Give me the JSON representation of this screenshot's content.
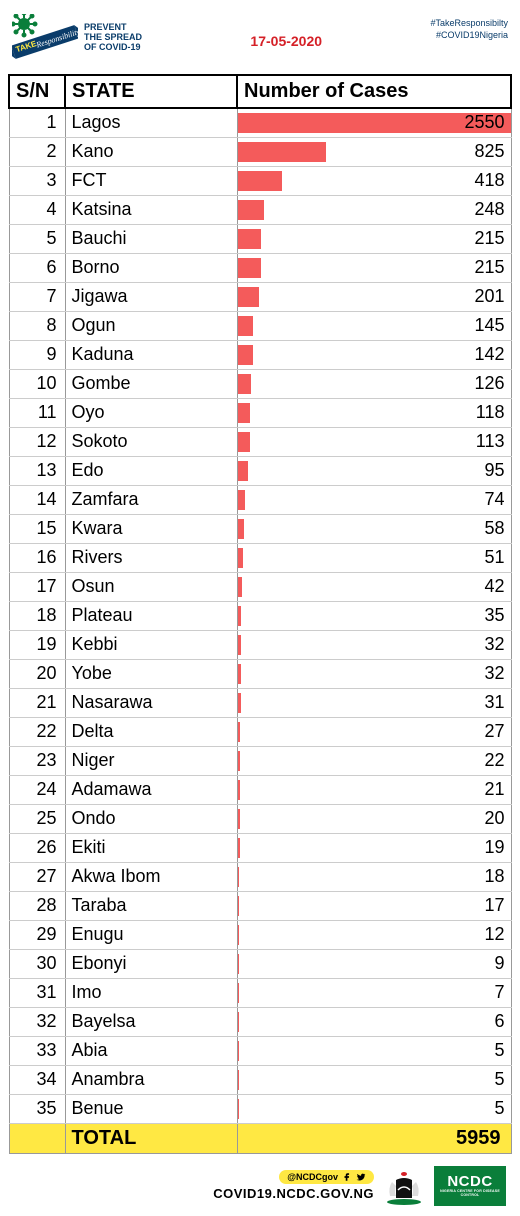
{
  "header": {
    "logo_top": "TAKE",
    "logo_word": "Responsibility",
    "prevent_line1": "PREVENT",
    "prevent_line2": "THE SPREAD",
    "prevent_line3": "OF COVID-19",
    "date": "17-05-2020",
    "hashtag1": "#TakeResponsibilty",
    "hashtag2": "#COVID19Nigeria"
  },
  "table": {
    "columns": {
      "sn": "S/N",
      "state": "STATE",
      "cases": "Number of Cases"
    },
    "bar_color": "#f45b5b",
    "bar_max": 2550,
    "total_label": "TOTAL",
    "total_value": 5959,
    "total_row_bg": "#ffe843",
    "rows": [
      {
        "sn": 1,
        "state": "Lagos",
        "cases": 2550
      },
      {
        "sn": 2,
        "state": "Kano",
        "cases": 825
      },
      {
        "sn": 3,
        "state": "FCT",
        "cases": 418
      },
      {
        "sn": 4,
        "state": "Katsina",
        "cases": 248
      },
      {
        "sn": 5,
        "state": "Bauchi",
        "cases": 215
      },
      {
        "sn": 6,
        "state": "Borno",
        "cases": 215
      },
      {
        "sn": 7,
        "state": "Jigawa",
        "cases": 201
      },
      {
        "sn": 8,
        "state": "Ogun",
        "cases": 145
      },
      {
        "sn": 9,
        "state": "Kaduna",
        "cases": 142
      },
      {
        "sn": 10,
        "state": "Gombe",
        "cases": 126
      },
      {
        "sn": 11,
        "state": "Oyo",
        "cases": 118
      },
      {
        "sn": 12,
        "state": "Sokoto",
        "cases": 113
      },
      {
        "sn": 13,
        "state": "Edo",
        "cases": 95
      },
      {
        "sn": 14,
        "state": "Zamfara",
        "cases": 74
      },
      {
        "sn": 15,
        "state": "Kwara",
        "cases": 58
      },
      {
        "sn": 16,
        "state": "Rivers",
        "cases": 51
      },
      {
        "sn": 17,
        "state": "Osun",
        "cases": 42
      },
      {
        "sn": 18,
        "state": "Plateau",
        "cases": 35
      },
      {
        "sn": 19,
        "state": "Kebbi",
        "cases": 32
      },
      {
        "sn": 20,
        "state": "Yobe",
        "cases": 32
      },
      {
        "sn": 21,
        "state": "Nasarawa",
        "cases": 31
      },
      {
        "sn": 22,
        "state": "Delta",
        "cases": 27
      },
      {
        "sn": 23,
        "state": "Niger",
        "cases": 22
      },
      {
        "sn": 24,
        "state": "Adamawa",
        "cases": 21
      },
      {
        "sn": 25,
        "state": "Ondo",
        "cases": 20
      },
      {
        "sn": 26,
        "state": "Ekiti",
        "cases": 19
      },
      {
        "sn": 27,
        "state": "Akwa Ibom",
        "cases": 18
      },
      {
        "sn": 28,
        "state": "Taraba",
        "cases": 17
      },
      {
        "sn": 29,
        "state": "Enugu",
        "cases": 12
      },
      {
        "sn": 30,
        "state": "Ebonyi",
        "cases": 9
      },
      {
        "sn": 31,
        "state": "Imo",
        "cases": 7
      },
      {
        "sn": 32,
        "state": "Bayelsa",
        "cases": 6
      },
      {
        "sn": 33,
        "state": "Abia",
        "cases": 5
      },
      {
        "sn": 34,
        "state": "Anambra",
        "cases": 5
      },
      {
        "sn": 35,
        "state": "Benue",
        "cases": 5
      }
    ]
  },
  "footer": {
    "handle": "@NCDCgov",
    "url": "COVID19.NCDC.GOV.NG",
    "ncdc_label": "NCDC",
    "ncdc_sub": "NIGERIA CENTRE FOR DISEASE CONTROL"
  },
  "colors": {
    "brand_blue": "#0a3c6a",
    "brand_red": "#d52027",
    "brand_yellow": "#ffe843",
    "brand_green": "#0a7e3a"
  }
}
